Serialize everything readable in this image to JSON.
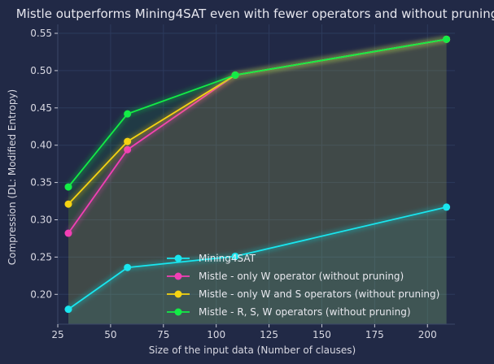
{
  "chart_data": {
    "type": "line",
    "title": "Mistle outperforms Mining4SAT even with fewer operators and without pruning",
    "xlabel": "Size of the input data (Number of clauses)",
    "ylabel": "Compression (DL: Modified Entropy)",
    "xlim": [
      25,
      213
    ],
    "ylim": [
      0.16,
      0.562
    ],
    "xticks": [
      25,
      50,
      75,
      100,
      125,
      150,
      175,
      200
    ],
    "yticks": [
      0.2,
      0.25,
      0.3,
      0.35,
      0.4,
      0.45,
      0.5,
      0.55
    ],
    "grid": true,
    "legend_position": "lower-center",
    "series": [
      {
        "name": "Mining4SAT",
        "color": "#19e6ef",
        "x": [
          30,
          58,
          109,
          209
        ],
        "y": [
          0.18,
          0.236,
          0.251,
          0.317
        ]
      },
      {
        "name": "Mistle - only W operator (without pruning)",
        "color": "#f23fb5",
        "x": [
          30,
          58,
          109,
          209
        ],
        "y": [
          0.282,
          0.394,
          0.494,
          0.542
        ]
      },
      {
        "name": "Mistle - only W and S operators (without pruning)",
        "color": "#f5d312",
        "x": [
          30,
          58,
          109,
          209
        ],
        "y": [
          0.321,
          0.405,
          0.494,
          0.542
        ]
      },
      {
        "name": "Mistle - R, S, W operators (without pruning)",
        "color": "#13ec46",
        "x": [
          30,
          58,
          109,
          209
        ],
        "y": [
          0.344,
          0.442,
          0.494,
          0.542
        ]
      }
    ]
  }
}
